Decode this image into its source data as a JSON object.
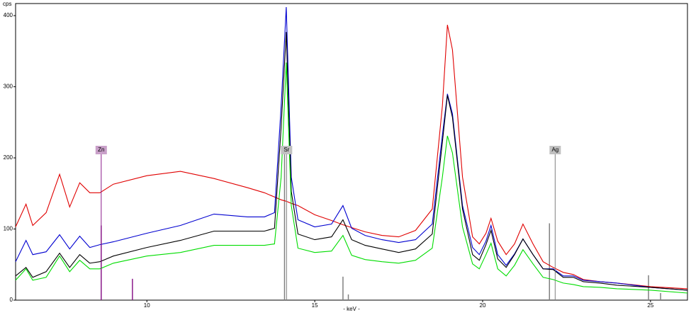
{
  "chart_data": {
    "type": "line",
    "y_axis_label": "cps",
    "x_axis_label": "- keV -",
    "xlim": [
      6.09,
      26.1
    ],
    "ylim": [
      0,
      417
    ],
    "xticks": [
      10,
      15,
      20,
      25
    ],
    "yticks": [
      0,
      100,
      200,
      300,
      400
    ],
    "x": [
      6.09,
      6.4,
      6.6,
      7.0,
      7.4,
      7.7,
      8.0,
      8.3,
      8.6,
      9,
      10,
      11,
      12,
      13,
      13.5,
      13.8,
      14.0,
      14.15,
      14.3,
      14.5,
      15,
      15.5,
      15.84,
      16.1,
      16.5,
      17,
      17.5,
      18,
      18.5,
      18.8,
      18.95,
      19.1,
      19.4,
      19.7,
      19.9,
      20.1,
      20.25,
      20.45,
      20.7,
      20.95,
      21.2,
      21.5,
      21.8,
      22.1,
      22.4,
      22.7,
      23,
      23.5,
      24,
      25,
      26.1
    ],
    "series": [
      {
        "color": "#e00000",
        "values": [
          103,
          135,
          105,
          123,
          177,
          131,
          165,
          151,
          151,
          163,
          175,
          181,
          171,
          158,
          151,
          145,
          141,
          139,
          136,
          133,
          120,
          112,
          106,
          102,
          96,
          91,
          89,
          98,
          128,
          273,
          387,
          352,
          173,
          89,
          79,
          94,
          115,
          83,
          64,
          79,
          107,
          79,
          54,
          46,
          39,
          36,
          29,
          26,
          24,
          19,
          16
        ]
      },
      {
        "color": "#0000d0",
        "values": [
          54,
          84,
          64,
          68,
          92,
          72,
          90,
          74,
          78,
          82,
          94,
          105,
          121,
          117,
          117,
          123,
          273,
          412,
          173,
          113,
          103,
          107,
          133,
          101,
          91,
          85,
          81,
          85,
          107,
          232,
          290,
          262,
          133,
          74,
          64,
          83,
          105,
          64,
          49,
          65,
          86,
          64,
          44,
          44,
          34,
          34,
          28,
          26,
          24,
          18,
          14
        ]
      },
      {
        "color": "#000000",
        "values": [
          34,
          46,
          32,
          40,
          66,
          46,
          64,
          52,
          54,
          62,
          74,
          84,
          97,
          97,
          97,
          101,
          243,
          377,
          153,
          93,
          85,
          89,
          113,
          85,
          77,
          72,
          67,
          72,
          93,
          222,
          288,
          257,
          128,
          64,
          56,
          78,
          98,
          58,
          46,
          64,
          86,
          64,
          44,
          43,
          32,
          32,
          26,
          24,
          21,
          18,
          14
        ]
      },
      {
        "color": "#00dd00",
        "values": [
          28,
          44,
          28,
          32,
          62,
          40,
          56,
          44,
          44,
          52,
          62,
          67,
          77,
          77,
          77,
          79,
          173,
          334,
          133,
          73,
          67,
          69,
          91,
          63,
          57,
          54,
          52,
          56,
          73,
          173,
          231,
          207,
          103,
          51,
          44,
          64,
          80,
          44,
          34,
          49,
          71,
          51,
          32,
          29,
          24,
          22,
          19,
          18,
          16,
          14,
          10
        ]
      }
    ],
    "markers": [
      {
        "label": "Zn",
        "x": 8.64,
        "color": "#8b1a8b"
      },
      {
        "label": "Sr",
        "x": 14.16,
        "color": "#808080"
      },
      {
        "label": "Ag",
        "x": 22.16,
        "color": "#808080"
      }
    ],
    "lines": [
      {
        "x": 8.64,
        "height": 105,
        "color": "#8b1a8b"
      },
      {
        "x": 9.57,
        "height": 30,
        "color": "#8b1a8b"
      },
      {
        "x": 14.1,
        "height": 211,
        "color": "#808080"
      },
      {
        "x": 15.84,
        "height": 33,
        "color": "#808080"
      },
      {
        "x": 16.0,
        "height": 8,
        "color": "#808080"
      },
      {
        "x": 21.99,
        "height": 108,
        "color": "#808080"
      },
      {
        "x": 24.94,
        "height": 35,
        "color": "#808080"
      },
      {
        "x": 25.3,
        "height": 10,
        "color": "#808080"
      }
    ]
  }
}
